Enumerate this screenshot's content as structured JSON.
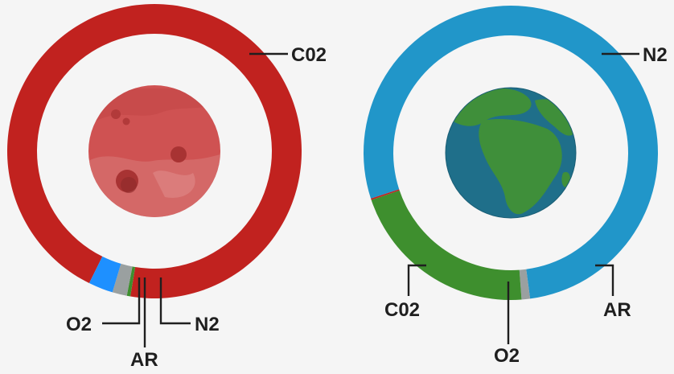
{
  "chart_data": [
    {
      "type": "donut",
      "title": "",
      "slices": [
        {
          "label": "C02",
          "value": 95.3,
          "color": "#c1221f"
        },
        {
          "label": "O2",
          "value": 0.13,
          "color": "#3e8f2e"
        },
        {
          "label": "AR",
          "value": 1.6,
          "color": "#9aa0a0"
        },
        {
          "label": "N2",
          "value": 2.7,
          "color": "#1e90ff"
        }
      ],
      "center_image": "mars-planet",
      "legend": "none"
    },
    {
      "type": "donut",
      "title": "",
      "slices": [
        {
          "label": "N2",
          "value": 78.0,
          "color": "#2196c9"
        },
        {
          "label": "AR",
          "value": 0.93,
          "color": "#9aa0a0"
        },
        {
          "label": "O2",
          "value": 21.0,
          "color": "#3e8f2e"
        },
        {
          "label": "C02",
          "value": 0.04,
          "color": "#c1221f"
        }
      ],
      "center_image": "earth-globe",
      "legend": "none"
    }
  ]
}
